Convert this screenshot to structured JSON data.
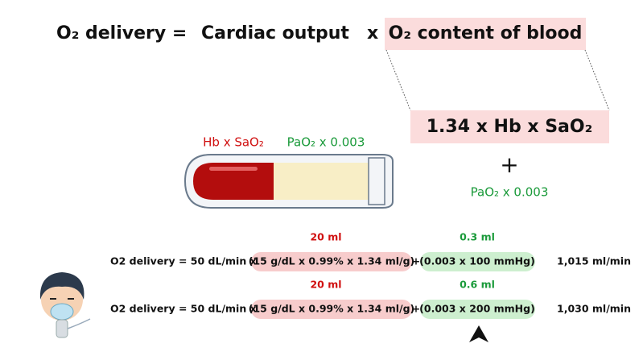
{
  "header": {
    "lhs": "O₂ delivery =",
    "cardiac": "Cardiac output",
    "times": "x",
    "content": "O₂ content of blood"
  },
  "expansion": {
    "formula": "1.34 x Hb x SaO₂",
    "plus": "+",
    "dissolved": "PaO₂ x 0.003"
  },
  "tube": {
    "red_label": "Hb x SaO₂",
    "yellow_label": "PaO₂ x 0.003"
  },
  "rows": [
    {
      "bound": "20 ml",
      "dissolved": "0.3 ml",
      "lhs": "O2 delivery = 50 dL/min x",
      "hb_term": "(15 g/dL x 0.99% x 1.34 ml/g)",
      "plus": "+",
      "pa_term": "(0.003 x 100 mmHg)",
      "result": "1,015 ml/min"
    },
    {
      "bound": "20 ml",
      "dissolved": "0.6 ml",
      "lhs": "O2 delivery = 50 dL/min x",
      "hb_term": "(15 g/dL x 0.99% x 1.34 ml/g)",
      "plus": "+",
      "pa_term": "(0.003 x 200 mmHg)",
      "result": "1,030 ml/min"
    }
  ]
}
